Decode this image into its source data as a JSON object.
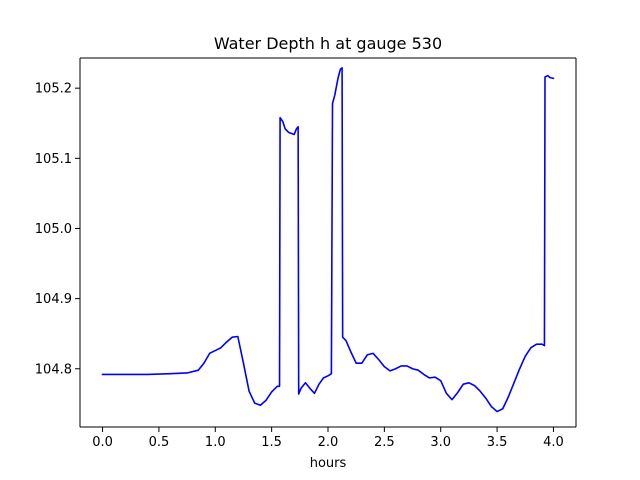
{
  "chart_data": {
    "type": "line",
    "title": "Water Depth h at gauge 530",
    "xlabel": "hours",
    "ylabel": "",
    "xlim": [
      -0.2,
      4.2
    ],
    "ylim": [
      104.717,
      105.243
    ],
    "xticks": [
      0.0,
      0.5,
      1.0,
      1.5,
      2.0,
      2.5,
      3.0,
      3.5,
      4.0
    ],
    "xtick_labels": [
      "0.0",
      "0.5",
      "1.0",
      "1.5",
      "2.0",
      "2.5",
      "3.0",
      "3.5",
      "4.0"
    ],
    "yticks": [
      104.8,
      104.9,
      105.0,
      105.1,
      105.2
    ],
    "ytick_labels": [
      "104.8",
      "104.9",
      "105.0",
      "105.1",
      "105.2"
    ],
    "grid": false,
    "series": [
      {
        "color": "#0000ff",
        "x": [
          0.0,
          0.2,
          0.4,
          0.6,
          0.75,
          0.85,
          0.9,
          0.95,
          1.0,
          1.05,
          1.1,
          1.15,
          1.2,
          1.25,
          1.3,
          1.35,
          1.4,
          1.45,
          1.5,
          1.55,
          1.57,
          1.575,
          1.6,
          1.62,
          1.65,
          1.7,
          1.72,
          1.735,
          1.74,
          1.76,
          1.8,
          1.84,
          1.88,
          1.92,
          1.96,
          2.0,
          2.03,
          2.04,
          2.06,
          2.09,
          2.11,
          2.125,
          2.13,
          2.16,
          2.2,
          2.25,
          2.3,
          2.35,
          2.4,
          2.45,
          2.5,
          2.55,
          2.6,
          2.65,
          2.7,
          2.75,
          2.8,
          2.85,
          2.9,
          2.95,
          3.0,
          3.05,
          3.1,
          3.15,
          3.2,
          3.25,
          3.3,
          3.35,
          3.4,
          3.45,
          3.5,
          3.55,
          3.6,
          3.65,
          3.7,
          3.75,
          3.8,
          3.85,
          3.9,
          3.92,
          3.925,
          3.95,
          3.97,
          4.0
        ],
        "y": [
          104.792,
          104.792,
          104.792,
          104.793,
          104.794,
          104.798,
          104.808,
          104.822,
          104.826,
          104.83,
          104.838,
          104.845,
          104.846,
          104.808,
          104.768,
          104.751,
          104.748,
          104.755,
          104.767,
          104.775,
          104.775,
          105.158,
          105.152,
          105.142,
          105.137,
          105.134,
          105.142,
          105.145,
          104.764,
          104.772,
          104.78,
          104.772,
          104.765,
          104.778,
          104.787,
          104.79,
          104.793,
          105.178,
          105.19,
          105.215,
          105.227,
          105.229,
          104.845,
          104.84,
          104.825,
          104.808,
          104.808,
          104.82,
          104.822,
          104.813,
          104.803,
          104.797,
          104.8,
          104.804,
          104.804,
          104.8,
          104.798,
          104.792,
          104.787,
          104.788,
          104.783,
          104.765,
          104.756,
          104.766,
          104.778,
          104.78,
          104.776,
          104.768,
          104.758,
          104.746,
          104.739,
          104.743,
          104.76,
          104.78,
          104.8,
          104.818,
          104.83,
          104.835,
          104.835,
          104.833,
          105.216,
          105.218,
          105.215,
          105.214
        ]
      }
    ]
  }
}
